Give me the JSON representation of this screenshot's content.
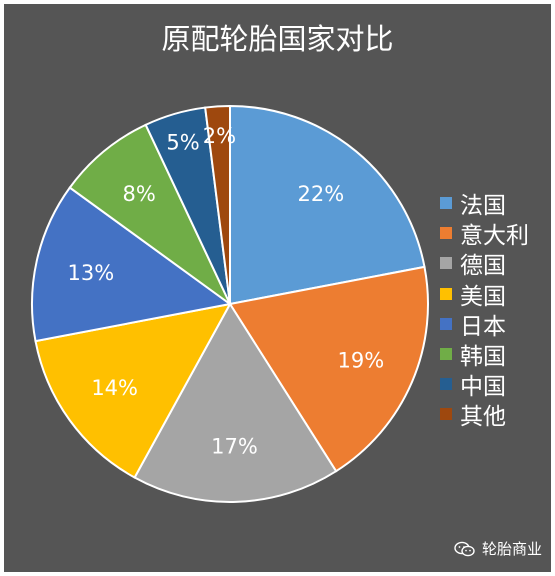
{
  "chart_data": {
    "type": "pie",
    "title": "原配轮胎国家对比",
    "slices": [
      {
        "name": "法国",
        "value": 22,
        "label": "22%",
        "color": "#5b9bd5"
      },
      {
        "name": "意大利",
        "value": 19,
        "label": "19%",
        "color": "#ed7d31"
      },
      {
        "name": "德国",
        "value": 17,
        "label": "17%",
        "color": "#a5a5a5"
      },
      {
        "name": "美国",
        "value": 14,
        "label": "14%",
        "color": "#ffc000"
      },
      {
        "name": "日本",
        "value": 13,
        "label": "13%",
        "color": "#4472c4"
      },
      {
        "name": "韩国",
        "value": 8,
        "label": "8%",
        "color": "#70ad47"
      },
      {
        "name": "中国",
        "value": 5,
        "label": "5%",
        "color": "#255e91"
      },
      {
        "name": "其他",
        "value": 2,
        "label": "2%",
        "color": "#9e480e"
      }
    ],
    "legend_position": "right",
    "background": "#555555"
  },
  "watermark": {
    "text": "轮胎商业",
    "icon": "wechat-icon"
  }
}
